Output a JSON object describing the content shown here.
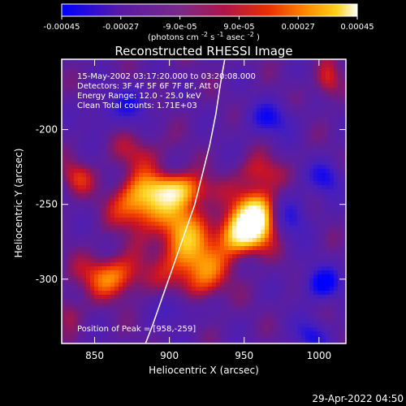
{
  "figure": {
    "title": "Reconstructed RHESSI Image",
    "timestamp": "29-Apr-2022 04:50"
  },
  "colorbar": {
    "tick_labels": [
      "-0.00045",
      "-0.00027",
      "-9.0e-05",
      "9.0e-05",
      "0.00027",
      "0.00045"
    ],
    "unit_base": "(photons cm",
    "unit_exp1": "-2",
    "unit_mid": " s",
    "unit_exp2": "-1",
    "unit_tail": " asec",
    "unit_exp3": "-2",
    "unit_close": ")"
  },
  "annotations": {
    "lines": [
      "15-May-2002 03:17:20.000 to 03:20:08.000",
      "Detectors: 3F 4F 5F 6F 7F 8F, Att 0",
      "Energy Range: 12.0 - 25.0 keV",
      "Clean     Total counts: 1.71E+03"
    ],
    "peak": "Position of Peak = [958,-259]"
  },
  "chart_data": {
    "type": "heatmap",
    "title": "Reconstructed RHESSI Image",
    "xlabel": "Heliocentric X (arcsec)",
    "ylabel": "Heliocentric Y (arcsec)",
    "xlim": [
      828,
      1018
    ],
    "ylim": [
      -343,
      -153
    ],
    "x_ticks": [
      850,
      900,
      950,
      1000
    ],
    "y_ticks": [
      -200,
      -250,
      -300
    ],
    "x_tick_labels": [
      "850",
      "900",
      "950",
      "1000"
    ],
    "y_tick_labels": [
      "-200",
      "-250",
      "-300"
    ],
    "colorbar_range": [
      -0.00045,
      0.00045
    ],
    "colormap": [
      "#0000ff",
      "#5a1aa6",
      "#7a2a8a",
      "#b0144a",
      "#e83000",
      "#ff8400",
      "#ffd21a",
      "#ffffff"
    ],
    "limb_curve": [
      [
        937,
        -153
      ],
      [
        934,
        -170
      ],
      [
        931,
        -190
      ],
      [
        927,
        -210
      ],
      [
        922,
        -230
      ],
      [
        917,
        -250
      ],
      [
        910,
        -270
      ],
      [
        903,
        -290
      ],
      [
        896,
        -310
      ],
      [
        889,
        -330
      ],
      [
        884,
        -343
      ]
    ],
    "peak": [
      958,
      -259
    ],
    "sources": [
      {
        "x": 958,
        "y": -259,
        "amp": 1.0,
        "sx": 10,
        "sy": 13
      },
      {
        "x": 945,
        "y": -270,
        "amp": 0.7,
        "sx": 10,
        "sy": 10
      },
      {
        "x": 908,
        "y": -270,
        "amp": 0.62,
        "sx": 12,
        "sy": 18
      },
      {
        "x": 880,
        "y": -250,
        "amp": 0.66,
        "sx": 13,
        "sy": 12
      },
      {
        "x": 862,
        "y": -298,
        "amp": 0.57,
        "sx": 16,
        "sy": 10
      },
      {
        "x": 905,
        "y": -240,
        "amp": 0.62,
        "sx": 16,
        "sy": 8
      },
      {
        "x": 922,
        "y": -296,
        "amp": 0.52,
        "sx": 12,
        "sy": 14
      },
      {
        "x": 838,
        "y": -232,
        "amp": 0.35,
        "sx": 8,
        "sy": 8
      },
      {
        "x": 1006,
        "y": -168,
        "amp": 0.38,
        "sx": 6,
        "sy": 9
      },
      {
        "x": 880,
        "y": -215,
        "amp": 0.28,
        "sx": 12,
        "sy": 10
      },
      {
        "x": 960,
        "y": -228,
        "amp": 0.34,
        "sx": 10,
        "sy": 8
      },
      {
        "x": 833,
        "y": -322,
        "amp": 0.25,
        "sx": 7,
        "sy": 8
      }
    ],
    "negatives": [
      {
        "x": 967,
        "y": -193,
        "amp": 0.42,
        "sx": 11,
        "sy": 8
      },
      {
        "x": 1002,
        "y": -303,
        "amp": 0.55,
        "sx": 9,
        "sy": 8
      },
      {
        "x": 1005,
        "y": -232,
        "amp": 0.42,
        "sx": 8,
        "sy": 8
      },
      {
        "x": 875,
        "y": -183,
        "amp": 0.35,
        "sx": 10,
        "sy": 9
      },
      {
        "x": 982,
        "y": -258,
        "amp": 0.38,
        "sx": 9,
        "sy": 10
      },
      {
        "x": 908,
        "y": -320,
        "amp": 0.3,
        "sx": 10,
        "sy": 8
      },
      {
        "x": 995,
        "y": -338,
        "amp": 0.4,
        "sx": 8,
        "sy": 8
      },
      {
        "x": 851,
        "y": -190,
        "amp": 0.2,
        "sx": 8,
        "sy": 8
      }
    ]
  }
}
